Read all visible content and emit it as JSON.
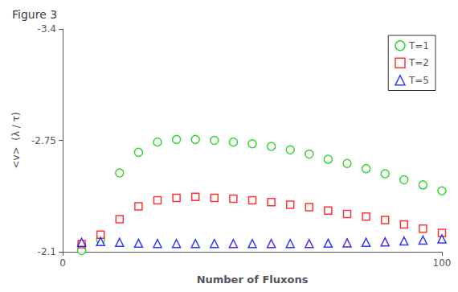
{
  "chart_data": {
    "type": "scatter",
    "title": "Figure 3",
    "x_label": "Number of Fluxons",
    "y_label": "<v>  (λ / τ)",
    "xlim": [
      0,
      100
    ],
    "xticks": [
      0,
      100
    ],
    "ylim": [
      -2.1,
      -3.4
    ],
    "yticks": [
      -3.4,
      -2.75,
      -2.1
    ],
    "grid": false,
    "legend": "upper right",
    "series": [
      {
        "name": "T=1",
        "color": "#00cc00",
        "marker": "circle",
        "x": [
          5,
          10,
          15,
          20,
          25,
          30,
          35,
          40,
          45,
          50,
          55,
          60,
          65,
          70,
          75,
          80,
          85,
          90,
          95,
          100
        ],
        "values": [
          -2.107,
          -2.17,
          -2.56,
          -2.68,
          -2.74,
          -2.755,
          -2.755,
          -2.75,
          -2.74,
          -2.73,
          -2.715,
          -2.695,
          -2.67,
          -2.64,
          -2.615,
          -2.585,
          -2.555,
          -2.52,
          -2.49,
          -2.455
        ]
      },
      {
        "name": "T=2",
        "color": "#ff0000",
        "marker": "square",
        "x": [
          5,
          10,
          15,
          20,
          25,
          30,
          35,
          40,
          45,
          50,
          55,
          60,
          65,
          70,
          75,
          80,
          85,
          90,
          95,
          100
        ],
        "values": [
          -2.145,
          -2.2,
          -2.29,
          -2.365,
          -2.4,
          -2.415,
          -2.42,
          -2.415,
          -2.41,
          -2.4,
          -2.39,
          -2.375,
          -2.36,
          -2.34,
          -2.32,
          -2.305,
          -2.285,
          -2.26,
          -2.235,
          -2.21
        ]
      },
      {
        "name": "T=5",
        "color": "#0000ff",
        "marker": "triangle",
        "x": [
          5,
          10,
          15,
          20,
          25,
          30,
          35,
          40,
          45,
          50,
          55,
          60,
          65,
          70,
          75,
          80,
          85,
          90,
          95,
          100
        ],
        "values": [
          -2.155,
          -2.16,
          -2.155,
          -2.15,
          -2.148,
          -2.148,
          -2.148,
          -2.148,
          -2.148,
          -2.148,
          -2.148,
          -2.148,
          -2.148,
          -2.15,
          -2.152,
          -2.155,
          -2.158,
          -2.163,
          -2.168,
          -2.175
        ]
      }
    ]
  }
}
